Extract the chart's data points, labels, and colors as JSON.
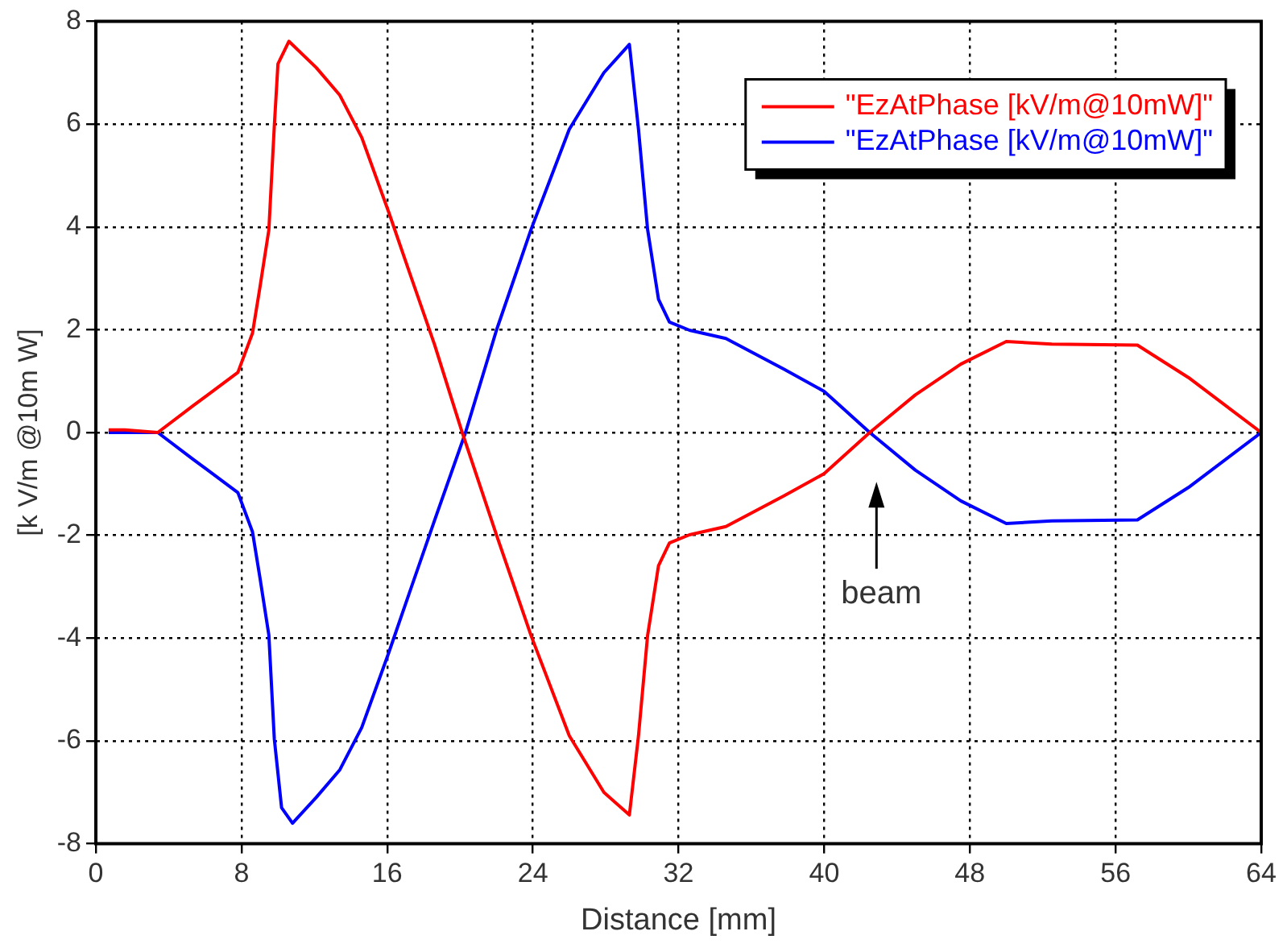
{
  "chart_data": {
    "type": "line",
    "xlabel": "Distance [mm]",
    "ylabel": "[k V/m @10m W]",
    "xlim": [
      0,
      64
    ],
    "xticks": [
      0,
      8,
      16,
      24,
      32,
      40,
      48,
      56,
      64
    ],
    "ylim": [
      -8,
      8
    ],
    "yticks": [
      -8,
      -6,
      -4,
      -2,
      0,
      2,
      4,
      6,
      8
    ],
    "grid": true,
    "legend": "top right",
    "marker": "none",
    "line_style": "solid",
    "annotations": [
      "beam"
    ],
    "series": [
      {
        "name": "\"EzAtPhase [kV/m@10mW]\"",
        "color": "#ff0000",
        "x": [
          0.7,
          1.6,
          3.4,
          5.3,
          7.8,
          8.6,
          9.0,
          9.5,
          9.8,
          10.0,
          10.6,
          12.1,
          13.4,
          14.6,
          16.1,
          17.1,
          18.6,
          20.1,
          22.0,
          23.9,
          26.0,
          27.9,
          29.3,
          29.8,
          30.3,
          30.9,
          31.5,
          32.6,
          34.6,
          37.8,
          40.0,
          42.5,
          45.0,
          47.5,
          50.0,
          52.5,
          57.2,
          60.0,
          64.0
        ],
        "values": [
          0.05,
          0.05,
          0.0,
          0.51,
          1.17,
          1.93,
          2.8,
          3.94,
          5.96,
          7.17,
          7.61,
          7.1,
          6.56,
          5.74,
          4.27,
          3.24,
          1.71,
          0.02,
          -1.99,
          -3.95,
          -5.9,
          -7.0,
          -7.44,
          -5.9,
          -3.95,
          -2.59,
          -2.15,
          -1.99,
          -1.83,
          -1.23,
          -0.8,
          0.0,
          0.73,
          1.33,
          1.77,
          1.72,
          1.7,
          1.07,
          0.0
        ]
      },
      {
        "name": "\"EzAtPhase [kV/m@10mW]\"",
        "color": "#0000ff",
        "x": [
          0.7,
          3.4,
          5.3,
          7.8,
          8.6,
          9.0,
          9.5,
          9.8,
          10.2,
          10.8,
          12.1,
          13.4,
          14.6,
          16.1,
          17.1,
          18.6,
          20.3,
          22.0,
          23.9,
          26.0,
          27.9,
          29.3,
          29.8,
          30.3,
          30.9,
          31.5,
          32.6,
          34.6,
          37.8,
          40.0,
          42.5,
          45.0,
          47.5,
          50.0,
          52.5,
          57.2,
          60.0,
          64.0
        ],
        "values": [
          0.0,
          0.0,
          -0.51,
          -1.17,
          -1.93,
          -2.8,
          -3.94,
          -5.96,
          -7.3,
          -7.6,
          -7.1,
          -6.56,
          -5.74,
          -4.27,
          -3.24,
          -1.71,
          0.0,
          1.99,
          3.95,
          5.9,
          7.0,
          7.55,
          5.9,
          3.95,
          2.59,
          2.15,
          1.99,
          1.83,
          1.23,
          0.8,
          0.0,
          -0.73,
          -1.33,
          -1.77,
          -1.72,
          -1.7,
          -1.07,
          0.0
        ]
      }
    ]
  }
}
